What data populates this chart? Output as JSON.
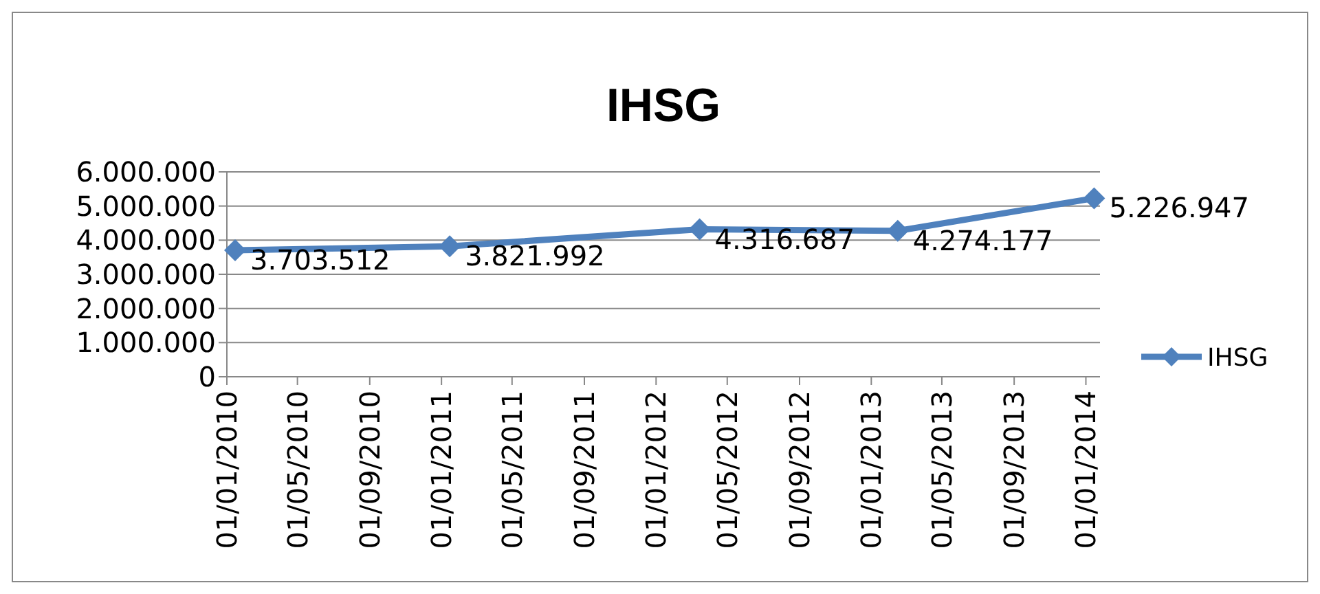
{
  "chart_data": {
    "type": "line",
    "title": "IHSG",
    "x": [
      "2010-01-15",
      "2011-01-15",
      "2012-03-15",
      "2013-02-15",
      "2014-01-15"
    ],
    "series": [
      {
        "name": "IHSG",
        "color": "#4f81bd",
        "values": [
          3703512,
          3821992,
          4316687,
          4274177,
          5226947
        ],
        "value_labels": [
          "3.703.512",
          "3.821.992",
          "4.316.687",
          "4.274.177",
          "5.226.947"
        ]
      }
    ],
    "xlim": [
      "2010-01-01",
      "2014-01-25"
    ],
    "xticks": [
      {
        "value": "2010-01-01",
        "label": "01/01/2010"
      },
      {
        "value": "2010-05-01",
        "label": "01/05/2010"
      },
      {
        "value": "2010-09-01",
        "label": "01/09/2010"
      },
      {
        "value": "2011-01-01",
        "label": "01/01/2011"
      },
      {
        "value": "2011-05-01",
        "label": "01/05/2011"
      },
      {
        "value": "2011-09-01",
        "label": "01/09/2011"
      },
      {
        "value": "2012-01-01",
        "label": "01/01/2012"
      },
      {
        "value": "2012-05-01",
        "label": "01/05/2012"
      },
      {
        "value": "2012-09-01",
        "label": "01/09/2012"
      },
      {
        "value": "2013-01-01",
        "label": "01/01/2013"
      },
      {
        "value": "2013-05-01",
        "label": "01/05/2013"
      },
      {
        "value": "2013-09-01",
        "label": "01/09/2013"
      },
      {
        "value": "2014-01-01",
        "label": "01/01/2014"
      }
    ],
    "ylim": [
      0,
      6000000
    ],
    "yticks": [
      0,
      {
        "value": 1000000,
        "label": "1.000.000"
      },
      {
        "value": 2000000,
        "label": "2.000.000"
      },
      {
        "value": 3000000,
        "label": "3.000.000"
      },
      {
        "value": 4000000,
        "label": "4.000.000"
      },
      {
        "value": 5000000,
        "label": "5.000.000"
      },
      {
        "value": 6000000,
        "label": "6.000.000"
      }
    ],
    "grid": "y",
    "legend": "right",
    "marker": "diamond",
    "line_style": "solid"
  }
}
